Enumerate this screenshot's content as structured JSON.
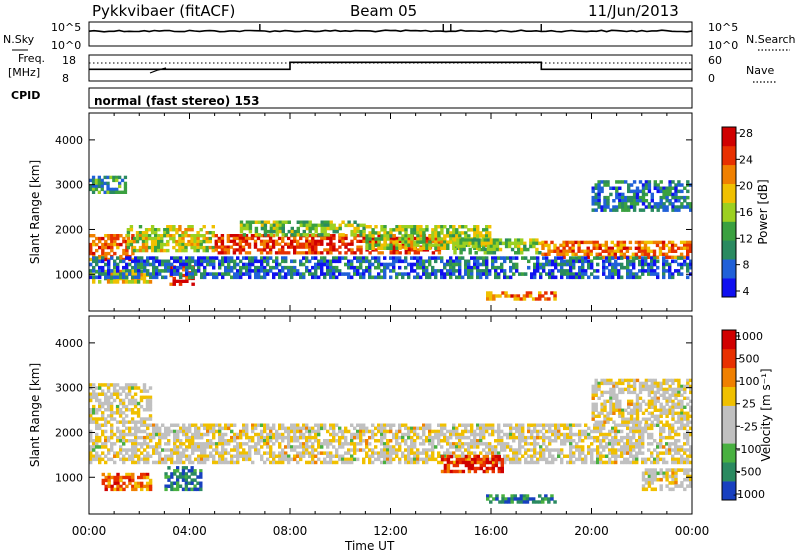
{
  "header": {
    "station": "Pykkvibaer (fitACF)",
    "beam": "Beam 05",
    "date": "11/Jun/2013"
  },
  "strips": {
    "nsky": {
      "label": "N.Sky",
      "ticks_left": [
        "10^5",
        "10^0"
      ],
      "ticks_right": [
        "10^5",
        "10^0"
      ],
      "right_label": "N.Search"
    },
    "freq": {
      "label_line1": "Freq.",
      "label_line2": "[MHz]",
      "ticks_left": [
        "18",
        "8"
      ],
      "ticks_right": [
        "60",
        "0"
      ],
      "right_label": "Nave",
      "steps": [
        {
          "t0": 0,
          "t1": 8,
          "level": 0.45
        },
        {
          "t0": 8,
          "t1": 18,
          "level": 0.72
        },
        {
          "t0": 18,
          "t1": 24,
          "level": 0.45
        }
      ]
    },
    "cpid": {
      "label": "CPID",
      "text": "normal (fast stereo) 153"
    }
  },
  "axes": {
    "ylabel": "Slant Range [km]",
    "xlabel": "Time UT",
    "xticks": [
      "00:00",
      "04:00",
      "08:00",
      "12:00",
      "16:00",
      "20:00",
      "00:00"
    ],
    "yticks": [
      "4000",
      "3000",
      "2000",
      "1000"
    ]
  },
  "chart_data": [
    {
      "type": "heatmap",
      "title": "",
      "xlabel": "Time UT",
      "ylabel": "Slant Range [km]",
      "xlim": [
        0,
        24
      ],
      "ylim": [
        180,
        4600
      ],
      "colorbar": {
        "label": "Power [dB]",
        "ticks": [
          "28",
          "24",
          "20",
          "16",
          "12",
          "8",
          "4"
        ],
        "range": [
          0,
          30
        ],
        "colors": [
          "#1010f0",
          "#2060d8",
          "#2a8a60",
          "#3aa040",
          "#9cd020",
          "#f0c000",
          "#f08000",
          "#e83000",
          "#d00000"
        ]
      },
      "bands": [
        {
          "t0": 0.0,
          "t1": 1.8,
          "r0": 1300,
          "r1": 1900,
          "level": 0.75
        },
        {
          "t0": 1.5,
          "t1": 5.0,
          "r0": 1500,
          "r1": 2100,
          "level": 0.55
        },
        {
          "t0": 3.2,
          "t1": 4.2,
          "r0": 750,
          "r1": 1200,
          "level": 0.85
        },
        {
          "t0": 0.0,
          "t1": 2.5,
          "r0": 800,
          "r1": 1100,
          "level": 0.6
        },
        {
          "t0": 5.0,
          "t1": 14.0,
          "r0": 1450,
          "r1": 1900,
          "level": 0.85
        },
        {
          "t0": 6.0,
          "t1": 11.0,
          "r0": 1850,
          "r1": 2200,
          "level": 0.45
        },
        {
          "t0": 11.0,
          "t1": 16.0,
          "r0": 1550,
          "r1": 2100,
          "level": 0.5
        },
        {
          "t0": 14.5,
          "t1": 18.0,
          "r0": 1450,
          "r1": 1800,
          "level": 0.45
        },
        {
          "t0": 15.8,
          "t1": 18.6,
          "r0": 420,
          "r1": 620,
          "level": 0.75
        },
        {
          "t0": 18.0,
          "t1": 24.0,
          "r0": 1350,
          "r1": 1750,
          "level": 0.75
        },
        {
          "t0": 0.0,
          "t1": 1.5,
          "r0": 2800,
          "r1": 3200,
          "level": 0.3
        },
        {
          "t0": 20.0,
          "t1": 24.0,
          "r0": 2400,
          "r1": 3100,
          "level": 0.25
        },
        {
          "t0": 0.0,
          "t1": 24.0,
          "r0": 900,
          "r1": 1400,
          "level": 0.2
        }
      ]
    },
    {
      "type": "heatmap",
      "title": "",
      "xlabel": "Time UT",
      "ylabel": "Slant Range [km]",
      "xlim": [
        0,
        24
      ],
      "ylim": [
        180,
        4600
      ],
      "colorbar": {
        "label": "Velocity [m s⁻¹]",
        "ticks": [
          "1000",
          "500",
          "100",
          "25",
          "-25",
          "-100",
          "-500",
          "-1000"
        ],
        "range": [
          -1000,
          1000
        ],
        "colors": [
          "#1840c0",
          "#2a8a60",
          "#48b040",
          "#c0c0c0",
          "#c0c0c0",
          "#f0c000",
          "#f08000",
          "#e83000",
          "#d00000"
        ]
      },
      "bands": [
        {
          "t0": 0.0,
          "t1": 24.0,
          "r0": 1300,
          "r1": 2200,
          "level": 0.5
        },
        {
          "t0": 0.0,
          "t1": 2.5,
          "r0": 2200,
          "r1": 3100,
          "level": 0.5
        },
        {
          "t0": 3.0,
          "t1": 4.5,
          "r0": 700,
          "r1": 1250,
          "level": 0.15
        },
        {
          "t0": 0.5,
          "t1": 2.5,
          "r0": 700,
          "r1": 1100,
          "level": 0.75
        },
        {
          "t0": 15.8,
          "t1": 18.6,
          "r0": 420,
          "r1": 620,
          "level": 0.15
        },
        {
          "t0": 14.0,
          "t1": 16.5,
          "r0": 1100,
          "r1": 1500,
          "level": 0.88
        },
        {
          "t0": 20.0,
          "t1": 24.0,
          "r0": 2200,
          "r1": 3200,
          "level": 0.5
        },
        {
          "t0": 22.0,
          "t1": 24.0,
          "r0": 700,
          "r1": 1200,
          "level": 0.5
        }
      ]
    }
  ]
}
